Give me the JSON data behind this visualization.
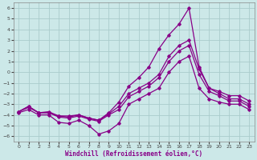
{
  "xlabel": "Windchill (Refroidissement éolien,°C)",
  "xlim": [
    -0.5,
    23.5
  ],
  "ylim": [
    -6.5,
    6.5
  ],
  "xticks": [
    0,
    1,
    2,
    3,
    4,
    5,
    6,
    7,
    8,
    9,
    10,
    11,
    12,
    13,
    14,
    15,
    16,
    17,
    18,
    19,
    20,
    21,
    22,
    23
  ],
  "yticks": [
    -6,
    -5,
    -4,
    -3,
    -2,
    -1,
    0,
    1,
    2,
    3,
    4,
    5,
    6
  ],
  "background_color": "#cce8e8",
  "grid_color": "#aacccc",
  "line_color": "#880088",
  "curve_top_x": [
    0,
    1,
    2,
    3,
    4,
    5,
    6,
    7,
    8,
    9,
    10,
    11,
    12,
    13,
    14,
    15,
    16,
    17,
    18,
    19,
    20,
    21,
    22,
    23
  ],
  "curve_top_y": [
    -3.7,
    -3.2,
    -3.8,
    -3.7,
    -4.1,
    -4.1,
    -4.0,
    -4.3,
    -4.5,
    -3.8,
    -2.8,
    -1.3,
    -0.5,
    0.5,
    2.2,
    3.5,
    4.5,
    6.0,
    0.5,
    -1.5,
    -1.8,
    -2.2,
    -2.2,
    -2.7
  ],
  "curve_mid1_x": [
    0,
    1,
    2,
    3,
    4,
    5,
    6,
    7,
    8,
    9,
    10,
    11,
    12,
    13,
    14,
    15,
    16,
    17,
    18,
    19,
    20,
    21,
    22,
    23
  ],
  "curve_mid1_y": [
    -3.7,
    -3.2,
    -3.8,
    -3.8,
    -4.1,
    -4.2,
    -4.0,
    -4.3,
    -4.5,
    -3.9,
    -3.2,
    -2.0,
    -1.5,
    -1.0,
    -0.2,
    1.5,
    2.5,
    3.0,
    0.3,
    -1.5,
    -2.0,
    -2.5,
    -2.5,
    -3.0
  ],
  "curve_mid2_x": [
    0,
    1,
    2,
    3,
    4,
    5,
    6,
    7,
    8,
    9,
    10,
    11,
    12,
    13,
    14,
    15,
    16,
    17,
    18,
    19,
    20,
    21,
    22,
    23
  ],
  "curve_mid2_y": [
    -3.7,
    -3.3,
    -3.8,
    -3.8,
    -4.2,
    -4.3,
    -4.1,
    -4.4,
    -4.6,
    -4.0,
    -3.5,
    -2.3,
    -1.8,
    -1.3,
    -0.5,
    1.0,
    2.0,
    2.5,
    -0.2,
    -1.8,
    -2.2,
    -2.7,
    -2.7,
    -3.2
  ],
  "curve_bot_x": [
    0,
    1,
    2,
    3,
    4,
    5,
    6,
    7,
    8,
    9,
    10,
    11,
    12,
    13,
    14,
    15,
    16,
    17,
    18,
    19,
    20,
    21,
    22,
    23
  ],
  "curve_bot_y": [
    -3.8,
    -3.5,
    -4.0,
    -4.0,
    -4.7,
    -4.8,
    -4.5,
    -5.0,
    -5.8,
    -5.5,
    -4.8,
    -3.0,
    -2.5,
    -2.0,
    -1.5,
    0.0,
    1.0,
    1.5,
    -1.5,
    -2.5,
    -2.8,
    -3.0,
    -3.0,
    -3.5
  ]
}
